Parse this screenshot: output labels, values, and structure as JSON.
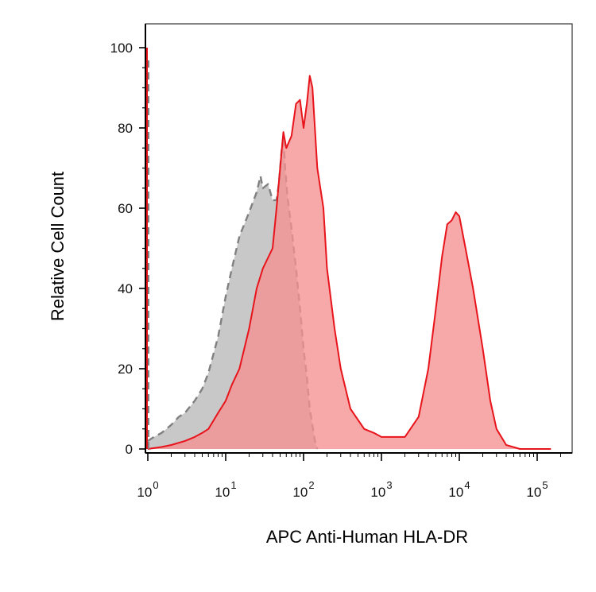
{
  "chart_data": {
    "type": "area",
    "xlabel": "APC Anti-Human HLA-DR",
    "ylabel": "Relative Cell Count",
    "x_scale": "log",
    "xlim": [
      1,
      150000
    ],
    "ylim": [
      0,
      102
    ],
    "x_ticks": [
      {
        "base": "10",
        "exp": "0",
        "value": 1
      },
      {
        "base": "10",
        "exp": "1",
        "value": 10
      },
      {
        "base": "10",
        "exp": "2",
        "value": 100
      },
      {
        "base": "10",
        "exp": "3",
        "value": 1000
      },
      {
        "base": "10",
        "exp": "4",
        "value": 10000
      },
      {
        "base": "10",
        "exp": "5",
        "value": 100000
      }
    ],
    "y_ticks": [
      "0",
      "20",
      "40",
      "60",
      "80",
      "100"
    ],
    "y_tick_values": [
      0,
      20,
      40,
      60,
      80,
      100
    ],
    "grid": false,
    "legend": "none",
    "series": [
      {
        "style": "gray dashed outline, light gray fill",
        "color": "#808080",
        "fill": "#c8c8c8",
        "points": [
          [
            1,
            2
          ],
          [
            1.2,
            3
          ],
          [
            1.5,
            4
          ],
          [
            2,
            6
          ],
          [
            2.5,
            8
          ],
          [
            3,
            9
          ],
          [
            4,
            12
          ],
          [
            5,
            15
          ],
          [
            6,
            19
          ],
          [
            8,
            28
          ],
          [
            10,
            38
          ],
          [
            12,
            45
          ],
          [
            15,
            53
          ],
          [
            20,
            59
          ],
          [
            25,
            64
          ],
          [
            28,
            68
          ],
          [
            30,
            65
          ],
          [
            35,
            66
          ],
          [
            40,
            62
          ],
          [
            45,
            62
          ],
          [
            48,
            66
          ],
          [
            52,
            74
          ],
          [
            55,
            78
          ],
          [
            58,
            70
          ],
          [
            62,
            63
          ],
          [
            70,
            55
          ],
          [
            80,
            45
          ],
          [
            90,
            35
          ],
          [
            100,
            25
          ],
          [
            110,
            18
          ],
          [
            120,
            10
          ],
          [
            140,
            2
          ],
          [
            150,
            0
          ]
        ]
      },
      {
        "style": "red solid outline, light red fill",
        "color": "#e8141b",
        "fill": "#f59090",
        "points": [
          [
            1,
            0
          ],
          [
            1.5,
            0.5
          ],
          [
            2,
            1
          ],
          [
            3,
            2
          ],
          [
            4,
            3
          ],
          [
            5,
            4
          ],
          [
            6,
            5
          ],
          [
            8,
            9
          ],
          [
            10,
            12
          ],
          [
            12,
            16
          ],
          [
            15,
            20
          ],
          [
            20,
            30
          ],
          [
            25,
            40
          ],
          [
            30,
            45
          ],
          [
            40,
            50
          ],
          [
            45,
            60
          ],
          [
            50,
            70
          ],
          [
            55,
            79
          ],
          [
            60,
            75
          ],
          [
            70,
            78
          ],
          [
            80,
            86
          ],
          [
            90,
            87
          ],
          [
            100,
            80
          ],
          [
            110,
            86
          ],
          [
            120,
            93
          ],
          [
            130,
            90
          ],
          [
            150,
            70
          ],
          [
            180,
            60
          ],
          [
            200,
            45
          ],
          [
            250,
            30
          ],
          [
            300,
            20
          ],
          [
            400,
            10
          ],
          [
            600,
            5
          ],
          [
            800,
            4
          ],
          [
            1000,
            3
          ],
          [
            1500,
            3
          ],
          [
            2000,
            3
          ],
          [
            3000,
            8
          ],
          [
            4000,
            20
          ],
          [
            5000,
            35
          ],
          [
            6000,
            48
          ],
          [
            7000,
            56
          ],
          [
            8000,
            57
          ],
          [
            9000,
            59
          ],
          [
            10000,
            58
          ],
          [
            12000,
            50
          ],
          [
            15000,
            40
          ],
          [
            20000,
            25
          ],
          [
            25000,
            12
          ],
          [
            30000,
            5
          ],
          [
            40000,
            1
          ],
          [
            60000,
            0
          ],
          [
            100000,
            0
          ],
          [
            150000,
            0
          ]
        ]
      }
    ]
  }
}
